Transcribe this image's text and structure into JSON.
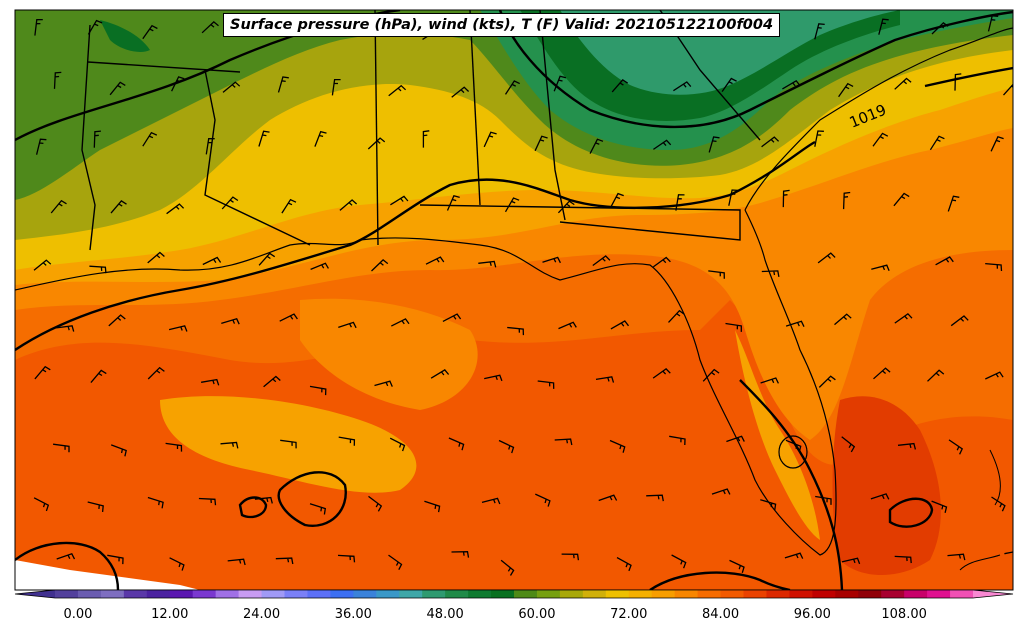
{
  "title": "Surface pressure (hPa), wind (kts), T (F) Valid: 202105122100f004",
  "isobar_labels": [
    "1019"
  ],
  "colorbar": {
    "tick_labels": [
      "0.00",
      "12.00",
      "24.00",
      "36.00",
      "48.00",
      "60.00",
      "72.00",
      "84.00",
      "96.00",
      "108.00"
    ],
    "range": [
      -6,
      120
    ],
    "step": 3,
    "colors": [
      "#40308f",
      "#52409c",
      "#6a5cb0",
      "#7e6ec0",
      "#5a38a8",
      "#4b22a0",
      "#5a16b0",
      "#7a38d0",
      "#a070e6",
      "#c89cf2",
      "#a09af6",
      "#7a80f8",
      "#5c70f8",
      "#3c6ff2",
      "#3a82da",
      "#3a98c8",
      "#3ea7a8",
      "#2e9a70",
      "#1f8a48",
      "#0e7a30",
      "#087020",
      "#4e8a16",
      "#76a010",
      "#a8a80a",
      "#d0b00a",
      "#eec000",
      "#f4b000",
      "#f89e00",
      "#f88600",
      "#f66c00",
      "#f25a00",
      "#ea4200",
      "#dc2800",
      "#d01000",
      "#c00000",
      "#a80000",
      "#900008",
      "#a80030",
      "#c8006a",
      "#e01090",
      "#f050b4",
      "#f888d2"
    ]
  },
  "colors": {
    "cold_dark_green": "#096f23",
    "green": "#24914d",
    "teal_green": "#2f9a6b",
    "olive": "#4f891b",
    "olive_yellow": "#a7a40d",
    "yellow": "#eebf00",
    "light_orange": "#f7a200",
    "orange": "#f98700",
    "dark_orange": "#f56d00",
    "red_orange": "#f25800",
    "red": "#e23c00"
  }
}
